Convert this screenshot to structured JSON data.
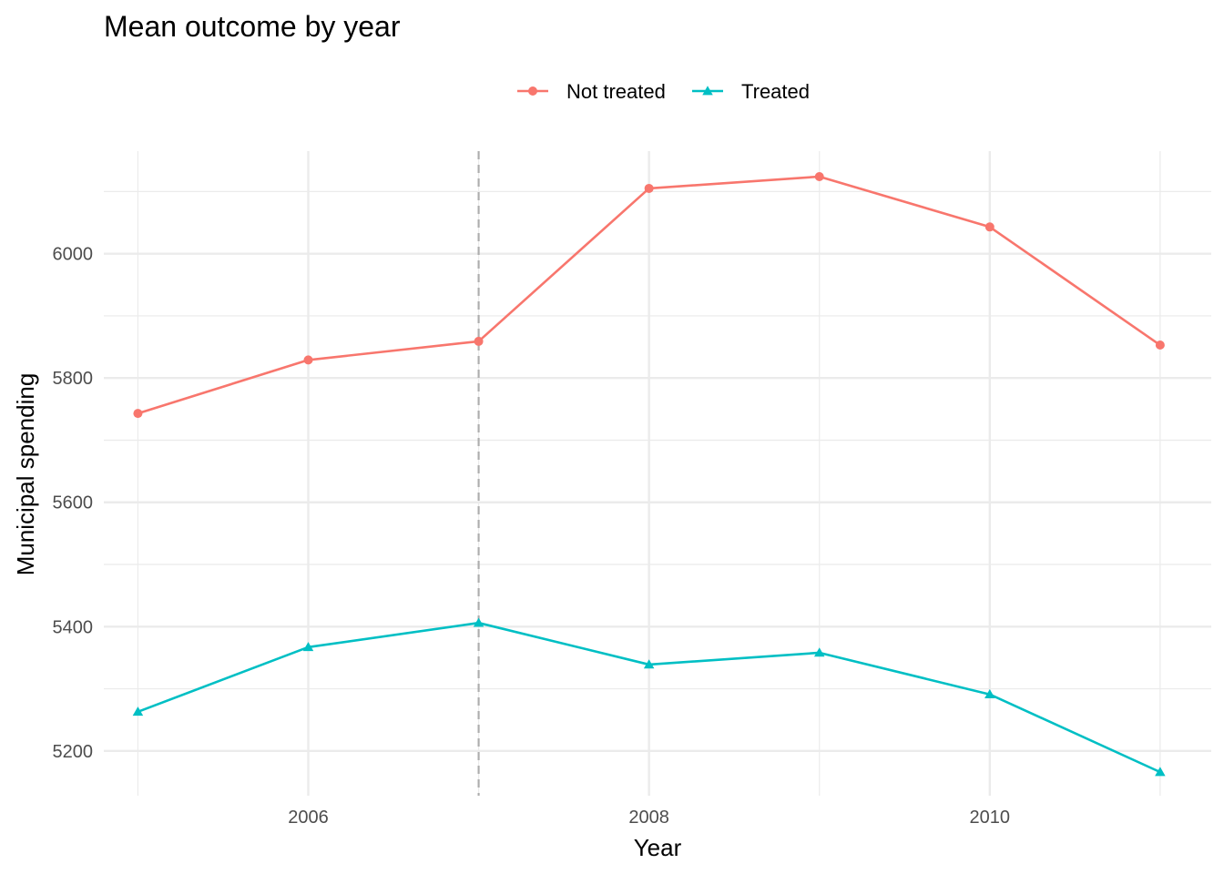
{
  "chart_data": {
    "type": "line",
    "title": "Mean outcome by year",
    "xlabel": "Year",
    "ylabel": "Municipal spending",
    "x": [
      2005,
      2006,
      2007,
      2008,
      2009,
      2010,
      2011
    ],
    "xlim": [
      2004.8,
      2011.3
    ],
    "ylim": [
      5128,
      6165
    ],
    "x_ticks": [
      2006,
      2008,
      2010
    ],
    "y_ticks": [
      5200,
      5400,
      5600,
      5800,
      6000
    ],
    "reference_line_x": 2007,
    "grid": true,
    "legend_position": "top",
    "series": [
      {
        "name": "Not treated",
        "marker": "circle",
        "color": "#F8766D",
        "values": [
          5743,
          5829,
          5859,
          6105,
          6124,
          6043,
          5853
        ]
      },
      {
        "name": "Treated",
        "marker": "triangle",
        "color": "#00BFC4",
        "values": [
          5263,
          5367,
          5406,
          5339,
          5358,
          5291,
          5166
        ]
      }
    ]
  }
}
